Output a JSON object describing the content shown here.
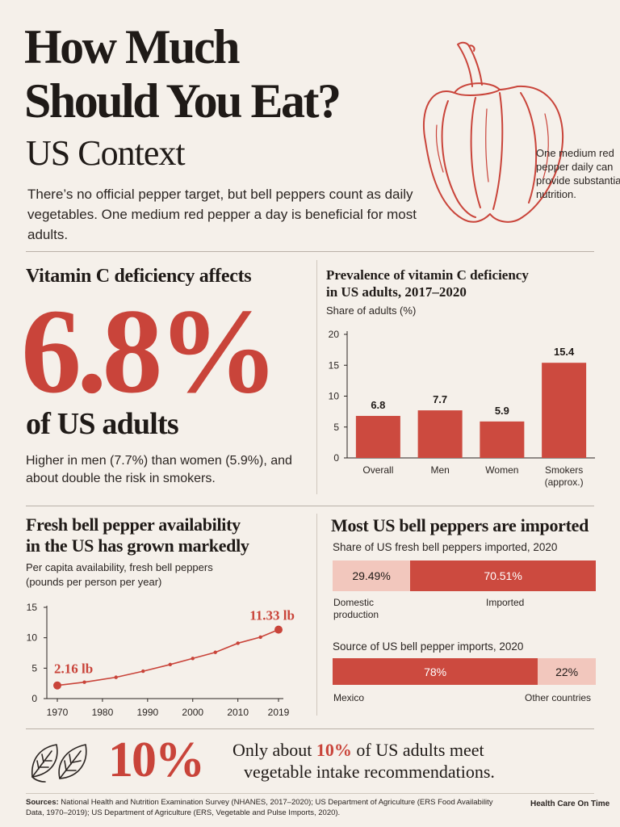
{
  "header": {
    "title_line1": "How Much",
    "title_line2": "Should You Eat?",
    "subtitle": "US Context",
    "intro": "There’s no official pepper target, but bell peppers count as daily vegetables. One medium red pepper a day is beneficial for most adults.",
    "pepper_note": "One medium red pepper daily can provide substantial nutrition.",
    "pepper_icon": "bell-pepper-illustration"
  },
  "deficiency": {
    "heading": "Vitamin C deficiency affects",
    "big_value": "6.8%",
    "suffix": "of US adults",
    "note": "Higher in men (7.7%) than women (5.9%), and about double the risk in smokers."
  },
  "deficiency_chart": {
    "title_line1": "Prevalence of vitamin C deficiency",
    "title_line2": "in US adults, 2017–2020",
    "subtitle": "Share of adults (%)"
  },
  "availability": {
    "title_line1": "Fresh bell pepper availability",
    "title_line2": "in the US has grown markedly",
    "subtitle_line1": "Per capita availability, fresh bell peppers",
    "subtitle_line2": "(pounds per person per year)",
    "start_label": "2.16 lb",
    "end_label": "11.33 lb"
  },
  "imports": {
    "title": "Most US bell peppers are imported",
    "share_title": "Share of US fresh bell peppers imported, 2020",
    "share_domestic_value": "29.49%",
    "share_imported_value": "70.51%",
    "share_domestic_label_line1": "Domestic",
    "share_domestic_label_line2": "production",
    "share_imported_label": "Imported",
    "share_domestic_fraction": 0.2949,
    "source_title": "Source of US bell pepper imports, 2020",
    "source_mexico_value": "78%",
    "source_other_value": "22%",
    "source_mexico_label": "Mexico",
    "source_other_label": "Other countries",
    "source_mexico_fraction": 0.78
  },
  "footer": {
    "big_value": "10%",
    "sentence_prefix": "Only about ",
    "sentence_highlight": "10%",
    "sentence_suffix": " of US adults meet",
    "sentence_line2": "vegetable intake recommendations.",
    "sources_label": "Sources:",
    "sources_text": " National Health and Nutrition Examination Survey (NHANES, 2017–2020); US Department of Agriculture (ERS Food Availability Data, 1970–2019); US Department of Agriculture (ERS, Vegetable and Pulse Imports, 2020).",
    "brand": "Health Care On Time",
    "leaf_icon": "leaves-icon"
  },
  "colors": {
    "accent": "#c9443a",
    "bar": "#cc4a3f",
    "light": "#f2c7bd",
    "background": "#f5f0ea"
  },
  "chart_data": [
    {
      "type": "bar",
      "title": "Prevalence of vitamin C deficiency in US adults, 2017–2020",
      "ylabel": "Share of adults (%)",
      "categories": [
        "Overall",
        "Men",
        "Women",
        "Smokers (approx.)"
      ],
      "category_lines": [
        [
          "Overall"
        ],
        [
          "Men"
        ],
        [
          "Women"
        ],
        [
          "Smokers",
          "(approx.)"
        ]
      ],
      "values": [
        6.8,
        7.7,
        5.9,
        15.4
      ],
      "value_labels": [
        "6.8",
        "7.7",
        "5.9",
        "15.4"
      ],
      "ylim": [
        0,
        20
      ],
      "yticks": [
        0,
        5,
        10,
        15,
        20
      ],
      "grid": false
    },
    {
      "type": "line",
      "title": "Fresh bell pepper availability in the US has grown markedly",
      "ylabel": "pounds per person per year",
      "x": [
        1970,
        1976,
        1983,
        1989,
        1995,
        2000,
        2005,
        2010,
        2015,
        2019
      ],
      "y": [
        2.16,
        2.7,
        3.5,
        4.5,
        5.6,
        6.6,
        7.6,
        9.1,
        10.1,
        11.33
      ],
      "xticks": [
        1970,
        1980,
        1990,
        2000,
        2010,
        2019
      ],
      "yticks": [
        0,
        5,
        10,
        15
      ],
      "xlim": [
        1970,
        2019
      ],
      "ylim": [
        0,
        15
      ],
      "grid": false
    }
  ]
}
